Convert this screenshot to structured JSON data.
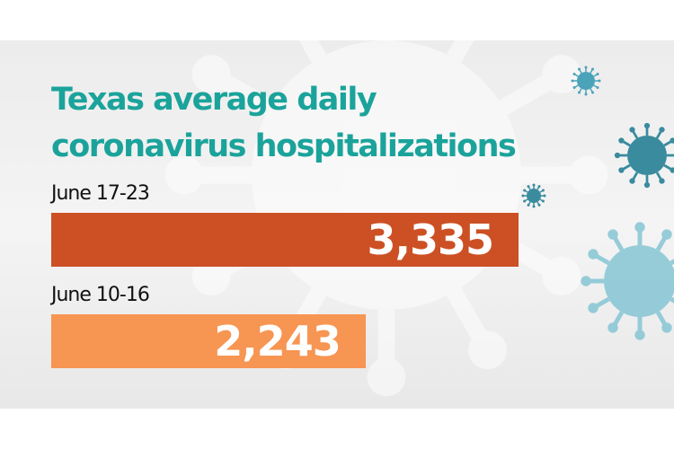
{
  "chart_data": {
    "type": "bar",
    "orientation": "horizontal",
    "title": "Texas average daily coronavirus hospitalizations",
    "title_lines": [
      "Texas average daily",
      "coronavirus hospitalizations"
    ],
    "categories": [
      "June 17-23",
      "June 10-16"
    ],
    "values": [
      3335,
      2243
    ],
    "value_labels": [
      "3,335",
      "2,243"
    ],
    "colors": [
      "#cc5024",
      "#f79552"
    ],
    "title_color": "#1ba39b",
    "grid": false,
    "decoration": "coronavirus-icons"
  }
}
